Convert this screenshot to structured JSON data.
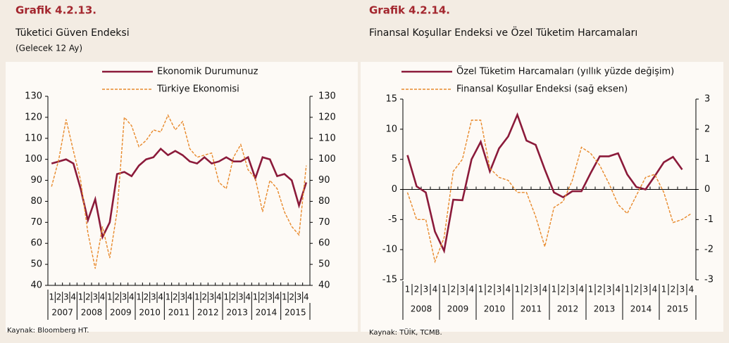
{
  "chart_data": [
    {
      "type": "line",
      "label": "Grafik 4.2.13.",
      "title": "Tüketici Güven Endeksi",
      "subtitle": "(Gelecek 12 Ay)",
      "source": "Kaynak: Bloomberg HT.",
      "categories": [
        "1",
        "2",
        "3",
        "4",
        "1",
        "2",
        "3",
        "4",
        "1",
        "2",
        "3",
        "4",
        "1",
        "2",
        "3",
        "4",
        "1",
        "2",
        "3",
        "4",
        "1",
        "2",
        "3",
        "4",
        "1",
        "2",
        "3",
        "4",
        "1",
        "2",
        "3",
        "4",
        "1",
        "2",
        "3",
        "4"
      ],
      "years": [
        "2007",
        "2008",
        "2009",
        "2010",
        "2011",
        "2012",
        "2013",
        "2014",
        "2015"
      ],
      "ylim": [
        40,
        130
      ],
      "yticks": [
        40,
        50,
        60,
        70,
        80,
        90,
        100,
        110,
        120,
        130
      ],
      "y2lim": [
        40,
        130
      ],
      "y2ticks": [
        40,
        50,
        60,
        70,
        80,
        90,
        100,
        110,
        120,
        130
      ],
      "legend": "top",
      "series": [
        {
          "name": "Ekonomik Durumunuz",
          "color": "#8b1a3a",
          "dash": false,
          "values": [
            98,
            99,
            100,
            98,
            86,
            71,
            81,
            63,
            70,
            93,
            94,
            92,
            97,
            100,
            101,
            105,
            102,
            104,
            102,
            99,
            98,
            101,
            98,
            99,
            101,
            99,
            99,
            101,
            91,
            101,
            100,
            92,
            93,
            90,
            78,
            89
          ]
        },
        {
          "name": "Türkiye Ekonomisi",
          "color": "#e8892b",
          "dash": true,
          "values": [
            87,
            100,
            119,
            104,
            90,
            65,
            48,
            68,
            53,
            75,
            120,
            116,
            106,
            109,
            114,
            113,
            121,
            114,
            118,
            105,
            101,
            102,
            103,
            89,
            86,
            101,
            107,
            95,
            91,
            75,
            90,
            86,
            75,
            68,
            64,
            97
          ]
        }
      ]
    },
    {
      "type": "line",
      "label": "Grafik 4.2.14.",
      "title": "Finansal Koşullar Endeksi ve Özel Tüketim Harcamaları",
      "source": "Kaynak: TÜİK, TCMB.",
      "categories": [
        "1",
        "2",
        "3",
        "4",
        "1",
        "2",
        "3",
        "4",
        "1",
        "2",
        "3",
        "4",
        "1",
        "2",
        "3",
        "4",
        "1",
        "2",
        "3",
        "4",
        "1",
        "2",
        "3",
        "4",
        "1",
        "2",
        "3",
        "4",
        "1",
        "2",
        "3",
        "4"
      ],
      "years": [
        "2008",
        "2009",
        "2010",
        "2011",
        "2012",
        "2013",
        "2014",
        "2015"
      ],
      "ylim": [
        -15,
        15
      ],
      "yticks": [
        -15,
        -10,
        -5,
        0,
        5,
        10,
        15
      ],
      "y2lim": [
        -3,
        3
      ],
      "y2ticks": [
        -3,
        -2,
        -1,
        0,
        1,
        2,
        3
      ],
      "legend": "top-left",
      "series": [
        {
          "name": "Özel Tüketim Harcamaları (yıllık yüzde değişim)",
          "color": "#8b1a3a",
          "dash": false,
          "values": [
            5.7,
            0.5,
            -0.5,
            -7,
            -10.2,
            -1.7,
            -1.8,
            5,
            7.9,
            3,
            6.8,
            8.8,
            12.4,
            8.1,
            7.4,
            3.3,
            -0.5,
            -1.3,
            -0.3,
            -0.3,
            2.7,
            5.5,
            5.5,
            6,
            2.5,
            0.4,
            0,
            2.2,
            4.5,
            5.4,
            3.3,
            null
          ]
        },
        {
          "name": "Finansal Koşullar Endeksi (sağ eksen)",
          "color": "#e8892b",
          "dash": true,
          "axis": "y2",
          "values": [
            -0.1,
            -1,
            -1,
            -2.4,
            -1.6,
            0.6,
            1,
            2.3,
            2.3,
            0.7,
            0.4,
            0.3,
            -0.1,
            -0.1,
            -0.9,
            -1.9,
            -0.6,
            -0.4,
            0.3,
            1.4,
            1.2,
            0.8,
            0.2,
            -0.5,
            -0.8,
            -0.2,
            0.4,
            0.5,
            -0.1,
            -1.1,
            -1,
            -0.8
          ]
        }
      ]
    }
  ]
}
